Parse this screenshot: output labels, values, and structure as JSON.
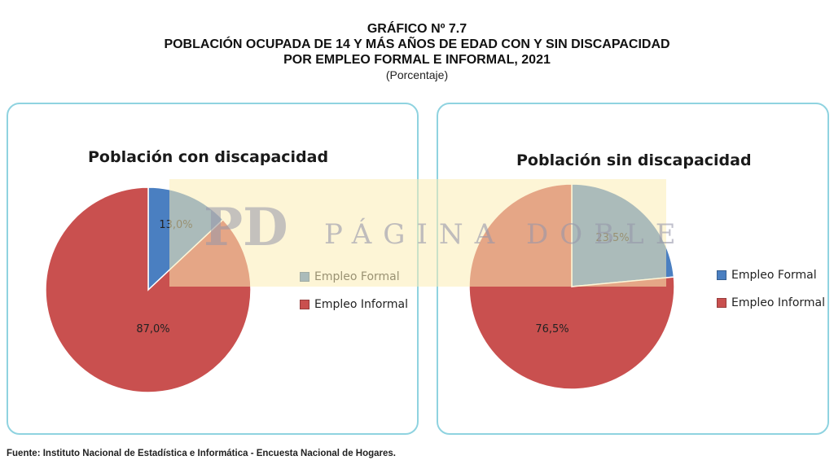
{
  "header": {
    "line1": "GRÁFICO  Nº 7.7",
    "line2": "POBLACIÓN OCUPADA DE 14 Y MÁS AÑOS DE EDAD CON Y SIN DISCAPACIDAD",
    "line3": "POR EMPLEO FORMAL E INFORMAL, 2021",
    "unit": "(Porcentaje)"
  },
  "colors": {
    "formal": "#4a7fc1",
    "informal": "#c9504f",
    "panel_border": "#8fd3e0"
  },
  "chart_data": [
    {
      "type": "pie",
      "title": "Población con discapacidad",
      "categories": [
        "Empleo Formal",
        "Empleo Informal"
      ],
      "values": [
        13.0,
        87.0
      ],
      "labels": [
        "13,0%",
        "87,0%"
      ],
      "legend_position": "right"
    },
    {
      "type": "pie",
      "title": "Población sin discapacidad",
      "categories": [
        "Empleo Formal",
        "Empleo Informal"
      ],
      "values": [
        23.5,
        76.5
      ],
      "labels": [
        "23,5%",
        "76,5%"
      ],
      "legend_position": "right"
    }
  ],
  "footer": "Fuente: Instituto Nacional de Estadística e Informática - Encuesta Nacional de Hogares.",
  "watermark": {
    "logo": "PD",
    "text": "PÁGINA DOBLE"
  }
}
